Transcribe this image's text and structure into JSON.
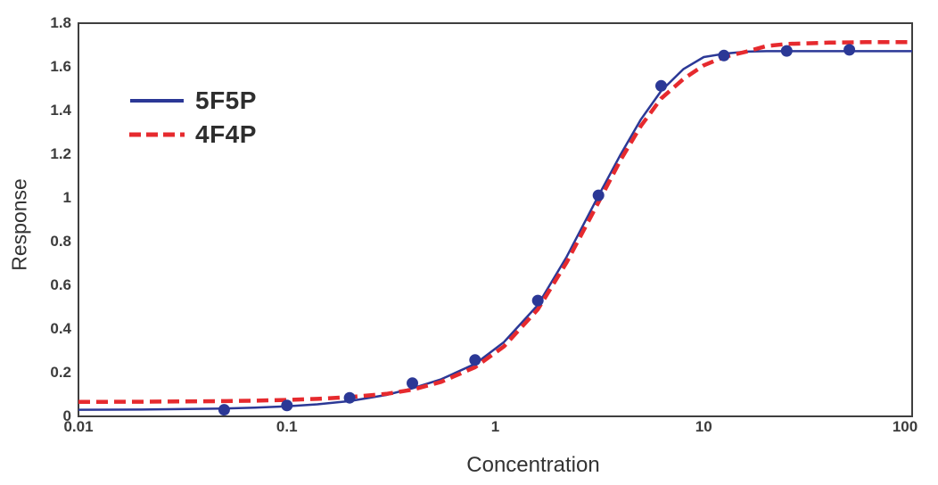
{
  "chart_data": {
    "type": "line",
    "title": "",
    "xlabel": "Concentration",
    "ylabel": "Response",
    "x_scale": "log",
    "x_range": [
      0.01,
      100
    ],
    "y_range": [
      0,
      1.8
    ],
    "x_tick_values": [
      0.01,
      0.1,
      1,
      10,
      100
    ],
    "x_tick_labels": [
      "0.01",
      "0.1",
      "1",
      "10",
      "100"
    ],
    "y_tick_values": [
      0,
      0.2,
      0.4,
      0.6,
      0.8,
      1,
      1.2,
      1.4,
      1.6,
      1.8
    ],
    "y_tick_labels": [
      "0",
      "0.2",
      "0.4",
      "0.6",
      "0.8",
      "1",
      "1.2",
      "1.4",
      "1.6",
      "1.8"
    ],
    "grid": false,
    "axis_color": "#3f3f3f",
    "legend_position": "upper-left-inside",
    "series": [
      {
        "name": "5F5P",
        "color": "#2b3896",
        "line_style": "solid",
        "line_width": 2.5,
        "marker": "circle",
        "marker_size": 13,
        "points": [
          [
            0.05,
            0.03
          ],
          [
            0.1,
            0.05
          ],
          [
            0.2,
            0.085
          ],
          [
            0.4,
            0.152
          ],
          [
            0.8,
            0.258
          ],
          [
            1.6,
            0.53
          ],
          [
            3.125,
            1.012
          ],
          [
            6.25,
            1.513
          ],
          [
            12.5,
            1.652
          ],
          [
            25,
            1.673
          ],
          [
            50,
            1.678
          ]
        ],
        "curve": [
          [
            0.01,
            0.03
          ],
          [
            0.02,
            0.031
          ],
          [
            0.03,
            0.033
          ],
          [
            0.05,
            0.036
          ],
          [
            0.07,
            0.04
          ],
          [
            0.1,
            0.046
          ],
          [
            0.14,
            0.055
          ],
          [
            0.2,
            0.07
          ],
          [
            0.3,
            0.098
          ],
          [
            0.4,
            0.128
          ],
          [
            0.55,
            0.17
          ],
          [
            0.8,
            0.24
          ],
          [
            1.1,
            0.34
          ],
          [
            1.6,
            0.51
          ],
          [
            2.2,
            0.73
          ],
          [
            3.125,
            1.01
          ],
          [
            4,
            1.2
          ],
          [
            5,
            1.36
          ],
          [
            6.25,
            1.49
          ],
          [
            8,
            1.59
          ],
          [
            10,
            1.645
          ],
          [
            12.5,
            1.66
          ],
          [
            16,
            1.67
          ],
          [
            20,
            1.672
          ],
          [
            25,
            1.672
          ],
          [
            40,
            1.672
          ],
          [
            60,
            1.672
          ],
          [
            100,
            1.672
          ]
        ]
      },
      {
        "name": "4F4P",
        "color": "#e62a2e",
        "line_style": "dashed",
        "line_width": 4.5,
        "marker": "none",
        "points": [],
        "curve": [
          [
            0.01,
            0.066
          ],
          [
            0.02,
            0.067
          ],
          [
            0.03,
            0.068
          ],
          [
            0.05,
            0.07
          ],
          [
            0.07,
            0.072
          ],
          [
            0.1,
            0.075
          ],
          [
            0.14,
            0.08
          ],
          [
            0.2,
            0.088
          ],
          [
            0.3,
            0.103
          ],
          [
            0.4,
            0.122
          ],
          [
            0.55,
            0.158
          ],
          [
            0.8,
            0.225
          ],
          [
            1.1,
            0.32
          ],
          [
            1.6,
            0.49
          ],
          [
            2.2,
            0.705
          ],
          [
            3.125,
            0.98
          ],
          [
            4,
            1.175
          ],
          [
            5,
            1.33
          ],
          [
            6.25,
            1.455
          ],
          [
            8,
            1.545
          ],
          [
            10,
            1.607
          ],
          [
            12.5,
            1.645
          ],
          [
            16,
            1.67
          ],
          [
            20,
            1.695
          ],
          [
            25,
            1.705
          ],
          [
            40,
            1.711
          ],
          [
            60,
            1.713
          ],
          [
            100,
            1.713
          ]
        ]
      }
    ]
  }
}
